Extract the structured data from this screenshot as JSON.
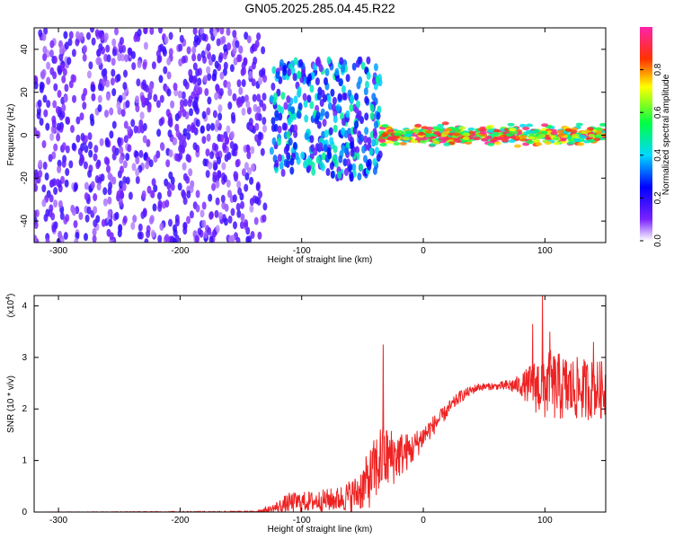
{
  "title": "GN05.2025.285.04.45.R22",
  "chart_data": [
    {
      "type": "heatmap",
      "xlabel": "Height of straight line (km)",
      "ylabel": "Frequency (Hz)",
      "xlim": [
        -320,
        150
      ],
      "ylim": [
        -50,
        50
      ],
      "x_ticks": [
        -300,
        -200,
        -100,
        0,
        100
      ],
      "x_tick_labels": [
        "-300",
        "-200",
        "-100",
        "0",
        "100"
      ],
      "y_ticks": [
        -40,
        -20,
        0,
        20,
        40
      ],
      "y_tick_labels": [
        "-40",
        "-20",
        "0",
        "20",
        "40"
      ],
      "colorbar": {
        "label": "Normalized spectral amplitude",
        "range": [
          0,
          1
        ],
        "ticks": [
          0.0,
          0.2,
          0.4,
          0.6,
          0.8
        ],
        "tick_labels": [
          "0.0",
          "0.2",
          "0.4",
          "0.6",
          "0.8"
        ],
        "colormap": "rainbow (white → purple → blue → cyan → green → yellow → red → magenta)"
      },
      "regions": [
        {
          "x_range": [
            -320,
            -130
          ],
          "freq_range": [
            -50,
            50
          ],
          "amplitude": [
            0.05,
            0.2
          ],
          "pattern": "broadband noise"
        },
        {
          "x_range": [
            -125,
            -35
          ],
          "freq_range": [
            -20,
            35
          ],
          "amplitude": [
            0.1,
            0.5
          ],
          "pattern": "scattered clusters"
        },
        {
          "x_range": [
            -35,
            150
          ],
          "freq_range": [
            -3,
            3
          ],
          "amplitude": [
            0.4,
            1.0
          ],
          "pattern": "narrow band centered at 0 Hz"
        }
      ],
      "grid": false
    },
    {
      "type": "line",
      "xlabel": "Height of straight line (km)",
      "ylabel": "SNR (10 * v/v)",
      "y_scale_label": "(x10",
      "y_scale_exponent": "4",
      "y_scale_suffix": ")",
      "xlim": [
        -320,
        150
      ],
      "ylim": [
        0,
        4.2
      ],
      "x_ticks": [
        -300,
        -200,
        -100,
        0,
        100
      ],
      "x_tick_labels": [
        "-300",
        "-200",
        "-100",
        "0",
        "100"
      ],
      "y_ticks": [
        0,
        1,
        2,
        3,
        4
      ],
      "y_tick_labels": [
        "0",
        "1",
        "2",
        "3",
        "4"
      ],
      "series": [
        {
          "color": "#ee2222",
          "envelope": [
            {
              "x": -320,
              "base": 0.0,
              "spread": 0.0
            },
            {
              "x": -140,
              "base": 0.0,
              "spread": 0.02
            },
            {
              "x": -125,
              "base": 0.03,
              "spread": 0.1
            },
            {
              "x": -110,
              "base": 0.12,
              "spread": 0.25
            },
            {
              "x": -90,
              "base": 0.15,
              "spread": 0.25
            },
            {
              "x": -70,
              "base": 0.18,
              "spread": 0.3
            },
            {
              "x": -55,
              "base": 0.25,
              "spread": 0.45
            },
            {
              "x": -45,
              "base": 0.45,
              "spread": 0.7
            },
            {
              "x": -35,
              "base": 0.8,
              "spread": 0.9
            },
            {
              "x": -25,
              "base": 0.9,
              "spread": 0.7
            },
            {
              "x": -10,
              "base": 1.1,
              "spread": 0.4
            },
            {
              "x": 0,
              "base": 1.4,
              "spread": 0.3
            },
            {
              "x": 15,
              "base": 1.8,
              "spread": 0.2
            },
            {
              "x": 30,
              "base": 2.2,
              "spread": 0.15
            },
            {
              "x": 45,
              "base": 2.4,
              "spread": 0.1
            },
            {
              "x": 60,
              "base": 2.42,
              "spread": 0.08
            },
            {
              "x": 80,
              "base": 2.4,
              "spread": 0.25
            },
            {
              "x": 90,
              "base": 2.3,
              "spread": 0.6
            },
            {
              "x": 100,
              "base": 2.25,
              "spread": 0.9
            },
            {
              "x": 120,
              "base": 2.2,
              "spread": 0.8
            },
            {
              "x": 150,
              "base": 2.2,
              "spread": 0.7
            }
          ],
          "spikes": [
            {
              "x": -33,
              "y": 3.25
            },
            {
              "x": 98,
              "y": 4.2
            },
            {
              "x": 90,
              "y": 3.65
            },
            {
              "x": 104,
              "y": 3.5
            },
            {
              "x": 140,
              "y": 3.3
            }
          ]
        }
      ],
      "grid": false
    }
  ]
}
